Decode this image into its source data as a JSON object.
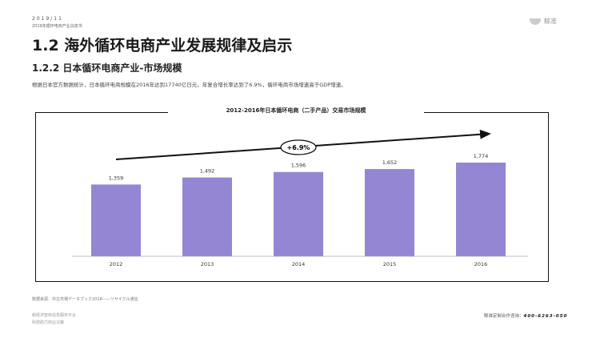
{
  "header": {
    "date": "2019/11",
    "report": "2019年循环电商产业白皮书",
    "logo": "鲸准"
  },
  "title": "1.2 海外循环电商产业发展规律及启示",
  "subtitle": "1.2.2 日本循环电商产业-市场规模",
  "description": "根据日本官方数据统计，日本循环电商规模在2016年达到17740亿日元，年复合增长率达到了6.9%，循环电商市场增速高于GDP增速。",
  "chart_data": {
    "type": "bar",
    "title": "2012-2016年日本循环电商（二手产品）交易市场规模",
    "categories": [
      "2012",
      "2013",
      "2014",
      "2015",
      "2016"
    ],
    "values": [
      1359,
      1492,
      1596,
      1652,
      1774
    ],
    "value_labels": [
      "1,359",
      "1,492",
      "1,596",
      "1,652",
      "1,774"
    ],
    "annotation": "+6.9%",
    "ylim": [
      0,
      2000
    ],
    "color": "#9586d4"
  },
  "footer": {
    "source": "数据来源：中古市場データブック2018——リサイクル通信",
    "left1": "新经济智库信息服务平台",
    "left2": "科技助力商业决策",
    "hotline_label": "鲸准定制合作咨询：",
    "hotline": "400-6263-050"
  }
}
